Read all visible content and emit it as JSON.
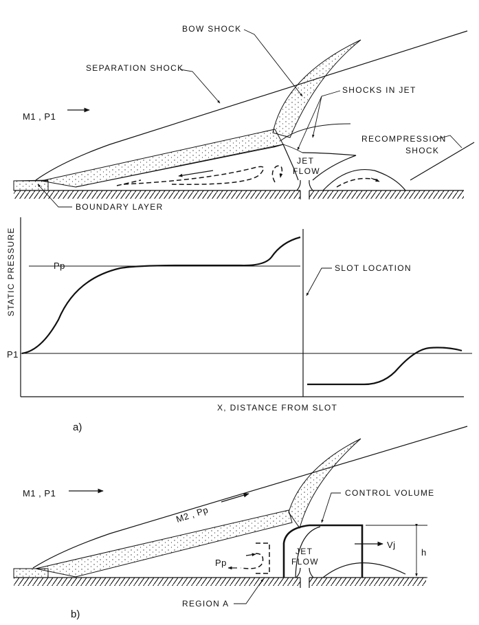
{
  "diagram_a": {
    "freestream": "M1 , P1",
    "labels": {
      "bow_shock": "BOW SHOCK",
      "separation_shock": "SEPARATION SHOCK",
      "shocks_in_jet": "SHOCKS IN JET",
      "recompression_shock_1": "RECOMPRESSION",
      "recompression_shock_2": "SHOCK",
      "jet_flow_1": "JET",
      "jet_flow_2": "FLOW",
      "boundary_layer": "BOUNDARY LAYER"
    },
    "plot": {
      "ylabel": "STATIC PRESSURE",
      "xlabel": "X, DISTANCE FROM SLOT",
      "p_p": "Pp",
      "p_1": "P1",
      "slot_location": "SLOT LOCATION"
    },
    "panel_tag": "a)"
  },
  "diagram_b": {
    "freestream": "M1 , P1",
    "labels": {
      "m2_pp": "M2 , Pp",
      "control_volume": "CONTROL VOLUME",
      "jet_flow_1": "JET",
      "jet_flow_2": "FLOW",
      "v_j": "Vj",
      "h": "h",
      "p_p": "Pp",
      "region_a": "REGION A"
    },
    "panel_tag": "b)"
  }
}
